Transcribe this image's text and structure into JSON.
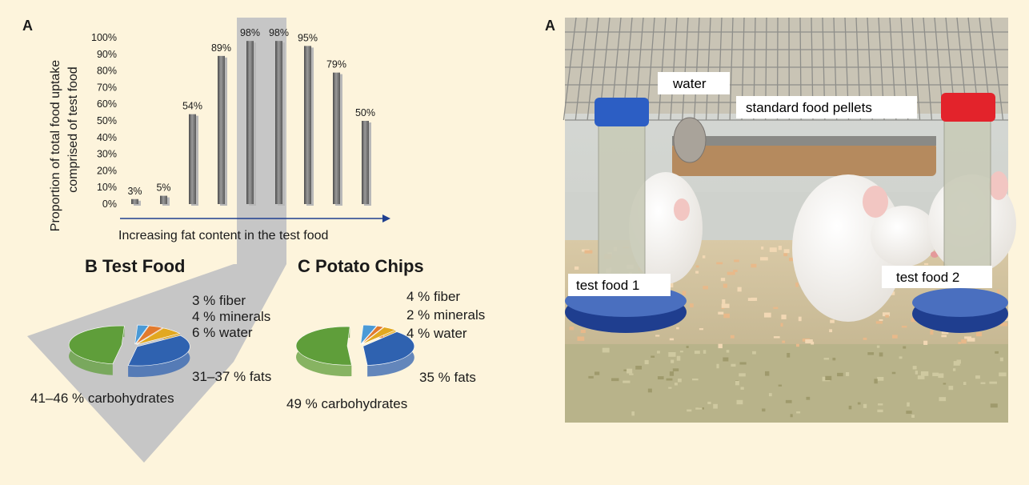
{
  "left_panel_letter": "A",
  "right_panel_letter": "A",
  "chart_data": [
    {
      "type": "bar",
      "categories": [
        "",
        "",
        "",
        "",
        "",
        "",
        "",
        "",
        ""
      ],
      "values": [
        3,
        5,
        54,
        89,
        98,
        98,
        95,
        79,
        50
      ],
      "data_labels": [
        "3%",
        "5%",
        "54%",
        "89%",
        "98%",
        "98%",
        "95%",
        "79%",
        "50%"
      ],
      "ylabel": "Proportion of total food uptake comprised of test food",
      "ylabel_lines": [
        "Proportion of total food uptake",
        "comprised of test food"
      ],
      "xlabel": "Increasing fat content in the test food",
      "y_ticks": [
        "0%",
        "10%",
        "20%",
        "30%",
        "40%",
        "50%",
        "60%",
        "70%",
        "80%",
        "90%",
        "100%"
      ],
      "ylim": [
        0,
        100
      ],
      "bar_color": "#7a7a7a",
      "highlight_color": "#c4c4c4"
    },
    {
      "type": "pie",
      "title": "B Test Food",
      "slices": [
        {
          "label": "31–37 % fats",
          "value": 34,
          "color": "#2f62b0"
        },
        {
          "label": "41–46 % carbohydrates",
          "value": 43.5,
          "color": "#5f9e3a"
        },
        {
          "label": "3 % fiber",
          "value": 3,
          "color": "#4b9ad6"
        },
        {
          "label": "4 % minerals",
          "value": 4,
          "color": "#e27a2d"
        },
        {
          "label": "6 % water",
          "value": 6,
          "color": "#e2a820"
        }
      ]
    },
    {
      "type": "pie",
      "title": "C Potato Chips",
      "slices": [
        {
          "label": "35 % fats",
          "value": 35,
          "color": "#2f62b0"
        },
        {
          "label": "49 % carbohydrates",
          "value": 49,
          "color": "#5f9e3a"
        },
        {
          "label": "4 % fiber",
          "value": 4,
          "color": "#4b9ad6"
        },
        {
          "label": "2 % minerals",
          "value": 2,
          "color": "#e27a2d"
        },
        {
          "label": "4 % water",
          "value": 4,
          "color": "#e2a820"
        }
      ]
    }
  ],
  "photo": {
    "labels": {
      "water": "water",
      "pellets": "standard food pellets",
      "food1": "test food 1",
      "food2": "test food 2"
    }
  }
}
